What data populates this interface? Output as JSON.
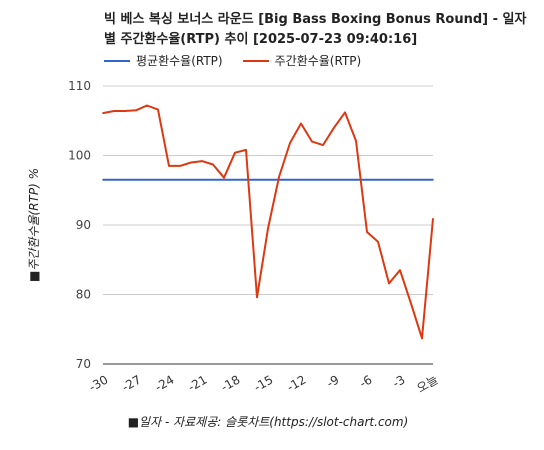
{
  "chart_data": {
    "type": "line",
    "title": "빅 베스 복싱 보너스 라운드 [Big Bass Boxing Bonus Round] - 일자별 주간환수율(RTP) 추이 [2025-07-23 09:40:16]",
    "xlabel": "■일자 - 자료제공: 슬롯차트(https://slot-chart.com)",
    "ylabel": "■주간환수율(RTP) %",
    "ylim": [
      70,
      110
    ],
    "yticks": [
      "110",
      "100",
      "90",
      "80",
      "70"
    ],
    "x_tick_labels": [
      "-30",
      "-27",
      "-24",
      "-21",
      "-18",
      "-15",
      "-12",
      "-9",
      "-6",
      "-3",
      "오늘"
    ],
    "x": [
      -30,
      -29,
      -28,
      -27,
      -26,
      -25,
      -24,
      -23,
      -22,
      -21,
      -20,
      -19,
      -18,
      -17,
      -16,
      -15,
      -14,
      -13,
      -12,
      -11,
      -10,
      -9,
      -8,
      -7,
      -6,
      -5,
      -4,
      -3,
      -2,
      -1,
      0
    ],
    "series": [
      {
        "name": "평균환수율(RTP)",
        "color": "#3366cc",
        "values": [
          96.5,
          96.5,
          96.5,
          96.5,
          96.5,
          96.5,
          96.5,
          96.5,
          96.5,
          96.5,
          96.5,
          96.5,
          96.5,
          96.5,
          96.5,
          96.5,
          96.5,
          96.5,
          96.5,
          96.5,
          96.5,
          96.5,
          96.5,
          96.5,
          96.5,
          96.5,
          96.5,
          96.5,
          96.5,
          96.5,
          96.5
        ]
      },
      {
        "name": "주간환수율(RTP)",
        "color": "#dc3912",
        "values": [
          106.1,
          106.4,
          106.4,
          106.5,
          107.2,
          106.6,
          98.5,
          98.5,
          99.0,
          99.2,
          98.7,
          96.8,
          100.4,
          100.8,
          79.6,
          89.5,
          96.9,
          101.8,
          104.6,
          102.0,
          101.5,
          104.0,
          106.2,
          102.1,
          89.0,
          87.6,
          81.6,
          83.5,
          78.7,
          73.7,
          90.9
        ]
      }
    ],
    "grid": true,
    "legend_position": "top-left"
  }
}
